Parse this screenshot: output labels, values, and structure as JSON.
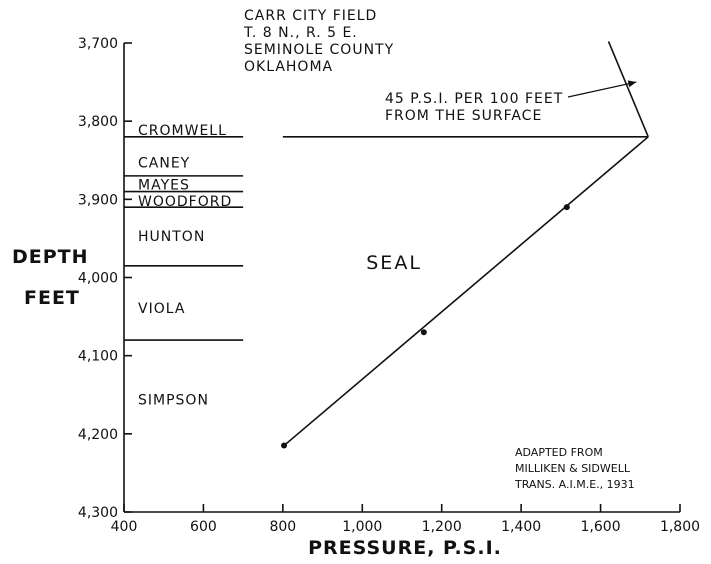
{
  "chart_data": {
    "type": "line",
    "title_lines": [
      "CARR CITY FIELD",
      "T. 8 N., R. 5 E.",
      "SEMINOLE COUNTY",
      "OKLAHOMA"
    ],
    "xlabel": "PRESSURE, P.S.I.",
    "ylabel_lines": [
      "DEPTH",
      "FEET"
    ],
    "xlim": [
      400,
      1800
    ],
    "ylim": [
      4300,
      3700
    ],
    "x_ticks": [
      400,
      600,
      800,
      1000,
      1200,
      1400,
      1600,
      1800
    ],
    "x_tick_labels": [
      "400",
      "600",
      "800",
      "1,000",
      "1,200",
      "1,400",
      "1,600",
      "1,800"
    ],
    "y_ticks": [
      3700,
      3800,
      3900,
      4000,
      4100,
      4200,
      4300
    ],
    "y_tick_labels": [
      "3,700",
      "3,800",
      "3,900",
      "4,000",
      "4,100",
      "4,200",
      "4,300"
    ],
    "series": [
      {
        "values": [
          {
            "x": 803,
            "y": 4215
          },
          {
            "x": 1155,
            "y": 4070
          },
          {
            "x": 1515,
            "y": 3910
          }
        ],
        "trend": [
          {
            "x": 803,
            "y": 4215
          },
          {
            "x": 1720,
            "y": 3820
          }
        ]
      }
    ],
    "gradient_line": [
      {
        "x": 1620,
        "y": 3698
      },
      {
        "x": 1720,
        "y": 3820
      }
    ],
    "seal_line": {
      "x1": 800,
      "x2": 1720,
      "y": 3820
    },
    "formation_boundaries": [
      3820,
      3870,
      3890,
      3910,
      3985,
      4080
    ],
    "formations": [
      {
        "name": "CROMWELL",
        "depth": 3811
      },
      {
        "name": "CANEY",
        "depth": 3853
      },
      {
        "name": "MAYES",
        "depth": 3881
      },
      {
        "name": "WOODFORD",
        "depth": 3902
      },
      {
        "name": "HUNTON",
        "depth": 3947
      },
      {
        "name": "VIOLA",
        "depth": 4039
      },
      {
        "name": "SIMPSON",
        "depth": 4156
      }
    ],
    "seal_label": {
      "text": "SEAL",
      "x": 1010,
      "y": 3980
    },
    "gradient_annotation": {
      "lines": [
        "45 P.S.I. PER 100 FEET",
        "FROM THE SURFACE"
      ],
      "arrow_to": {
        "x": 1690,
        "y": 3750
      }
    },
    "source_note": [
      "ADAPTED FROM",
      "MILLIKEN & SIDWELL",
      "TRANS. A.I.M.E., 1931"
    ],
    "grid": false
  }
}
